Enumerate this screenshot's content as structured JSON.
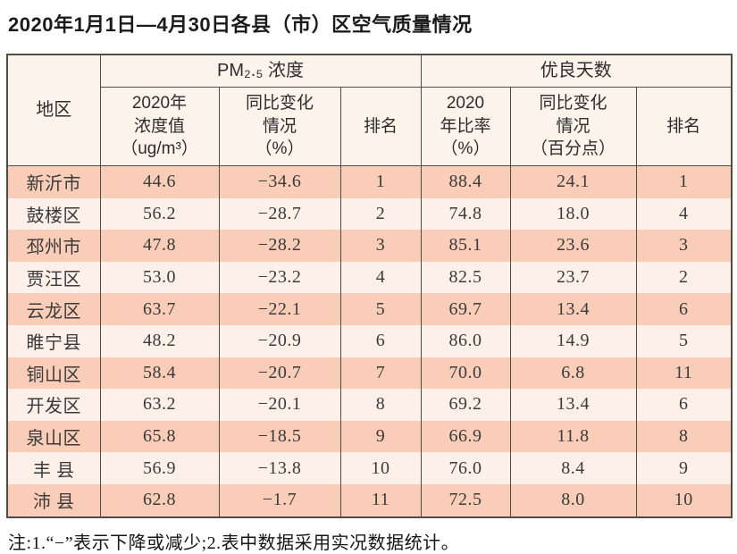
{
  "title": "2020年1月1日—4月30日各县（市）区空气质量情况",
  "table": {
    "region_header": "地区",
    "groups": [
      {
        "label": "PM₂.₅ 浓度",
        "columns": [
          "2020年\n浓度值\n（ug/m³）",
          "同比变化\n情况\n（%）",
          "排名"
        ]
      },
      {
        "label": "优良天数",
        "columns": [
          "2020\n年比率\n（%）",
          "同比变化\n情况\n（百分点）",
          "排名"
        ]
      }
    ],
    "rows": [
      [
        "新沂市",
        "44.6",
        "−34.6",
        "1",
        "88.4",
        "24.1",
        "1"
      ],
      [
        "鼓楼区",
        "56.2",
        "−28.7",
        "2",
        "74.8",
        "18.0",
        "4"
      ],
      [
        "邳州市",
        "47.8",
        "−28.2",
        "3",
        "85.1",
        "23.6",
        "3"
      ],
      [
        "贾汪区",
        "53.0",
        "−23.2",
        "4",
        "82.5",
        "23.7",
        "2"
      ],
      [
        "云龙区",
        "63.7",
        "−22.1",
        "5",
        "69.7",
        "13.4",
        "6"
      ],
      [
        "睢宁县",
        "48.2",
        "−20.9",
        "6",
        "86.0",
        "14.9",
        "5"
      ],
      [
        "铜山区",
        "58.4",
        "−20.7",
        "7",
        "70.0",
        "6.8",
        "11"
      ],
      [
        "开发区",
        "63.2",
        "−20.1",
        "8",
        "69.2",
        "13.4",
        "6"
      ],
      [
        "泉山区",
        "65.8",
        "−18.5",
        "9",
        "66.9",
        "11.8",
        "8"
      ],
      [
        "丰 县",
        "56.9",
        "−13.8",
        "10",
        "76.0",
        "8.4",
        "9"
      ],
      [
        "沛 县",
        "62.8",
        "−1.7",
        "11",
        "72.5",
        "8.0",
        "10"
      ]
    ],
    "cell_names": [
      "region-cell",
      "pm25-value-cell",
      "pm25-change-cell",
      "pm25-rank-cell",
      "good-days-rate-cell",
      "good-days-change-cell",
      "good-days-rank-cell"
    ]
  },
  "note": "注:1.“−”表示下降或减少;2.表中数据采用实况数据统计。",
  "colors": {
    "row_odd": "#f9cdb8",
    "row_even": "#fdf0e9",
    "header_bg": "#fcf3eb",
    "border": "#4f4b46",
    "text": "#3a3a3a",
    "title": "#1b1b1b"
  }
}
